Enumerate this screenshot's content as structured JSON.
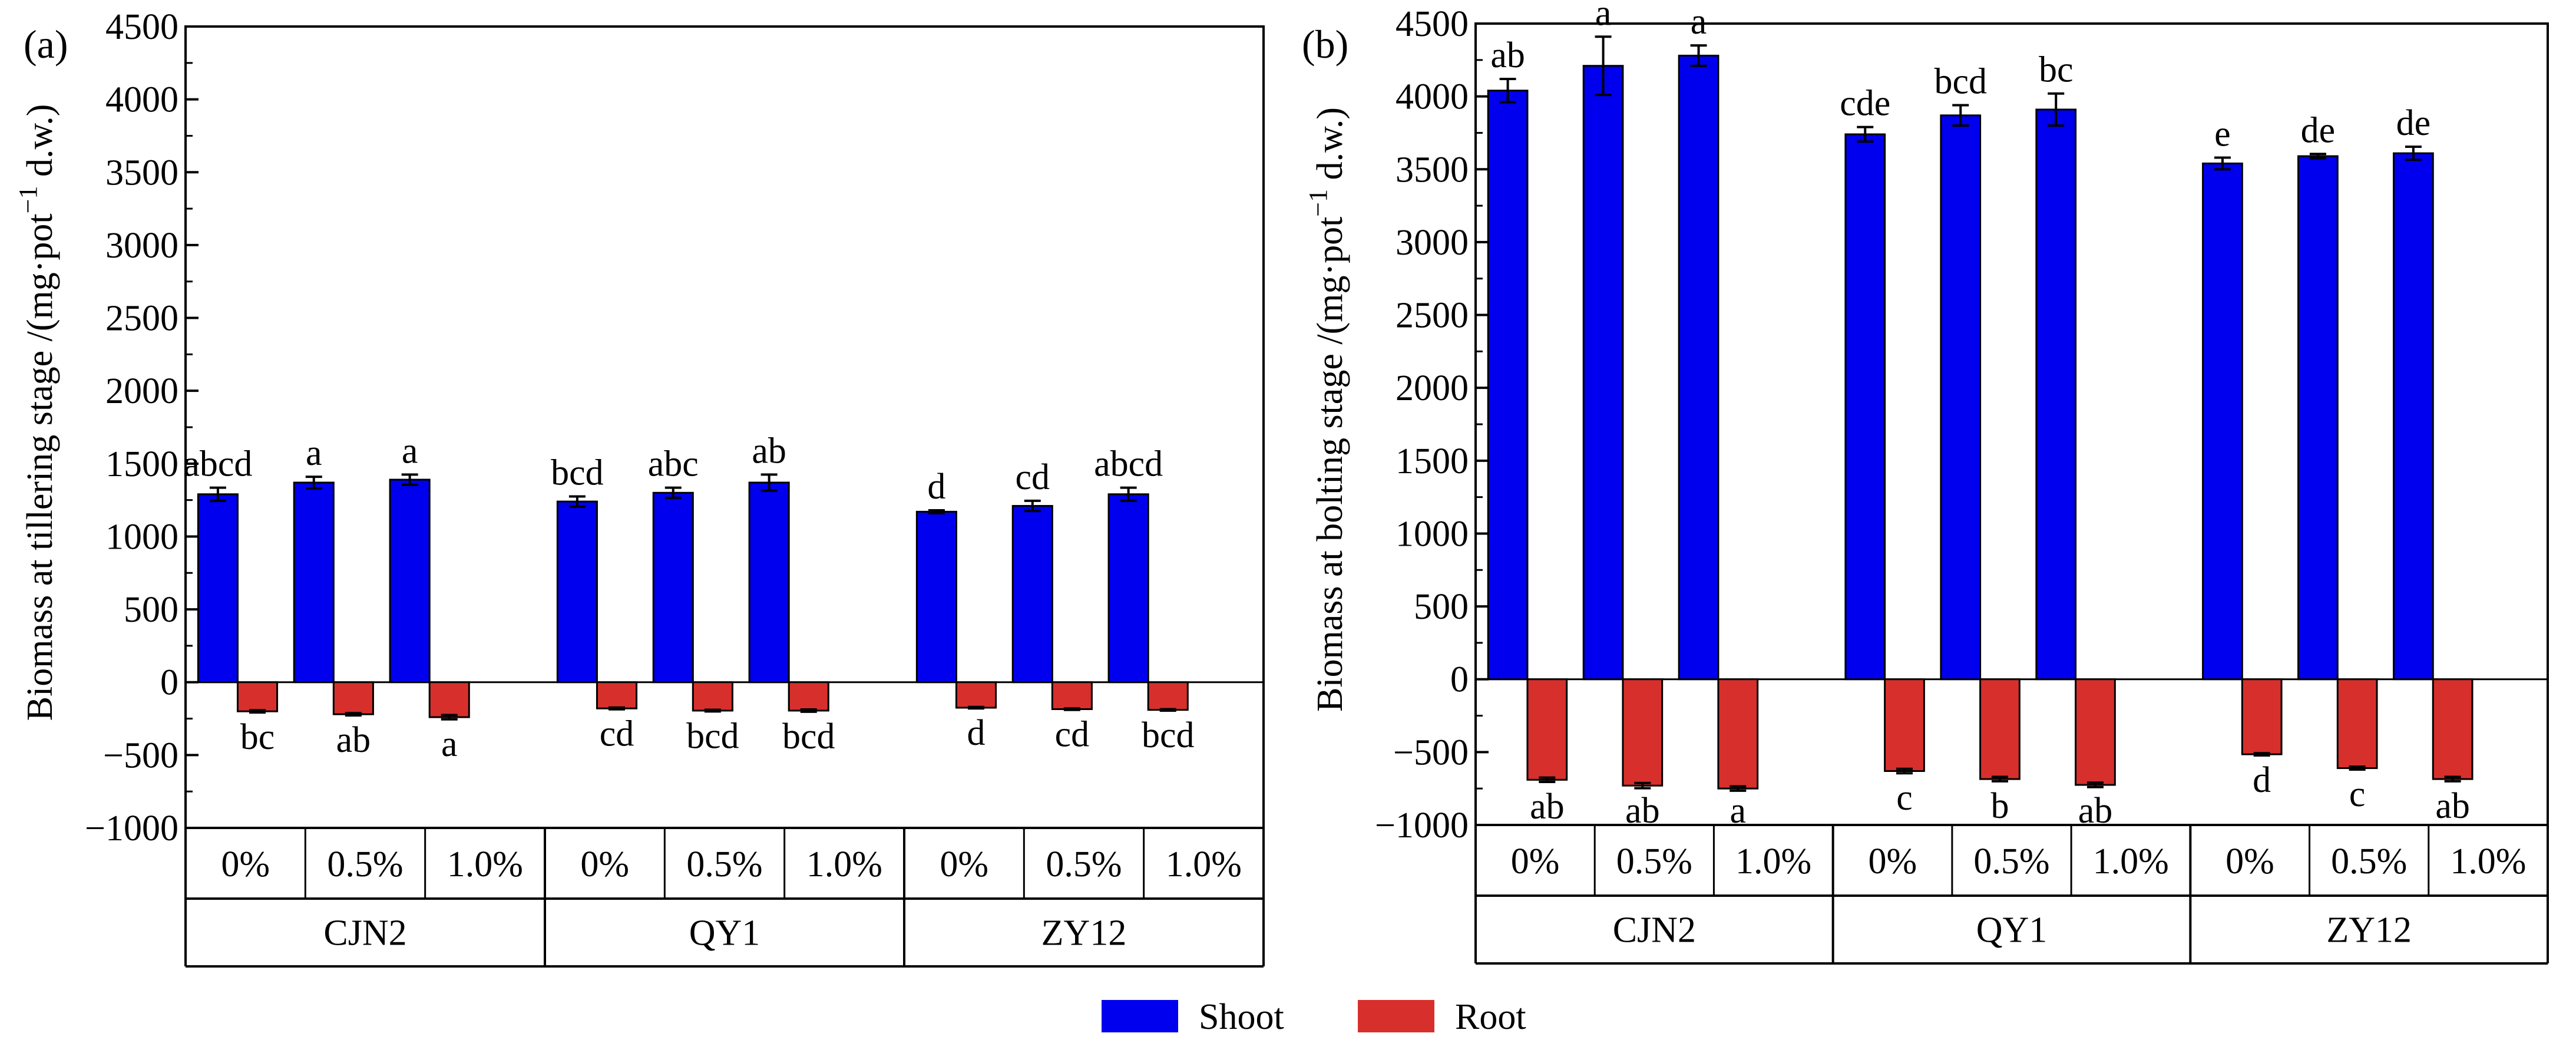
{
  "colors": {
    "shoot": "#0000ee",
    "root": "#d7302c"
  },
  "legend": [
    {
      "key": "shoot",
      "label": "Shoot"
    },
    {
      "key": "root",
      "label": "Root"
    }
  ],
  "treatments": [
    "0%",
    "0.5%",
    "1.0%"
  ],
  "cultivars": [
    "CJN2",
    "QY1",
    "ZY12"
  ],
  "chart_data": [
    {
      "type": "bar",
      "panel_label": "(a)",
      "ylabel": "Biomass at tillering stage /(mg·pot",
      "ylabel_sup": "−1",
      "ylabel_end": " d.w.)",
      "ylim": [
        -1000,
        4500
      ],
      "ytick_step": 500,
      "yticks": [
        "−1000",
        "−500",
        "0",
        "500",
        "1000",
        "1500",
        "2000",
        "2500",
        "3000",
        "3500",
        "4000",
        "4500"
      ],
      "categories": [
        "CJN2 0%",
        "CJN2 0.5%",
        "CJN2 1.0%",
        "QY1 0%",
        "QY1 0.5%",
        "QY1 1.0%",
        "ZY12 0%",
        "ZY12 0.5%",
        "ZY12 1.0%"
      ],
      "series": [
        {
          "name": "Shoot",
          "values": [
            1290,
            1370,
            1390,
            1240,
            1300,
            1370,
            1170,
            1210,
            1290
          ],
          "errors": [
            45,
            40,
            35,
            35,
            35,
            55,
            10,
            35,
            45
          ],
          "letters": [
            "abcd",
            "a",
            "a",
            "bcd",
            "abc",
            "ab",
            "d",
            "cd",
            "abcd"
          ]
        },
        {
          "name": "Root",
          "values": [
            -200,
            -220,
            -240,
            -180,
            -195,
            -195,
            -175,
            -185,
            -190
          ],
          "errors": [
            8,
            8,
            15,
            6,
            6,
            8,
            5,
            5,
            5
          ],
          "letters": [
            "bc",
            "ab",
            "a",
            "cd",
            "bcd",
            "bcd",
            "d",
            "cd",
            "bcd"
          ]
        }
      ]
    },
    {
      "type": "bar",
      "panel_label": "(b)",
      "ylabel": "Biomass at bolting stage /(mg·pot",
      "ylabel_sup": "−1",
      "ylabel_end": " d.w.)",
      "ylim": [
        -1000,
        4500
      ],
      "ytick_step": 500,
      "yticks": [
        "−1000",
        "−500",
        "0",
        "500",
        "1000",
        "1500",
        "2000",
        "2500",
        "3000",
        "3500",
        "4000",
        "4500"
      ],
      "categories": [
        "CJN2 0%",
        "CJN2 0.5%",
        "CJN2 1.0%",
        "QY1 0%",
        "QY1 0.5%",
        "QY1 1.0%",
        "ZY12 0%",
        "ZY12 0.5%",
        "ZY12 1.0%"
      ],
      "series": [
        {
          "name": "Shoot",
          "values": [
            4040,
            4210,
            4280,
            3740,
            3870,
            3910,
            3540,
            3590,
            3610
          ],
          "errors": [
            80,
            200,
            70,
            50,
            70,
            110,
            40,
            15,
            45
          ],
          "letters": [
            "ab",
            "a",
            "a",
            "cde",
            "bcd",
            "bc",
            "e",
            "de",
            "de"
          ]
        },
        {
          "name": "Root",
          "values": [
            -690,
            -730,
            -750,
            -630,
            -685,
            -725,
            -515,
            -610,
            -685
          ],
          "errors": [
            15,
            18,
            15,
            15,
            15,
            15,
            8,
            10,
            15
          ],
          "letters": [
            "ab",
            "ab",
            "a",
            "c",
            "b",
            "ab",
            "d",
            "c",
            "ab"
          ]
        }
      ]
    }
  ]
}
